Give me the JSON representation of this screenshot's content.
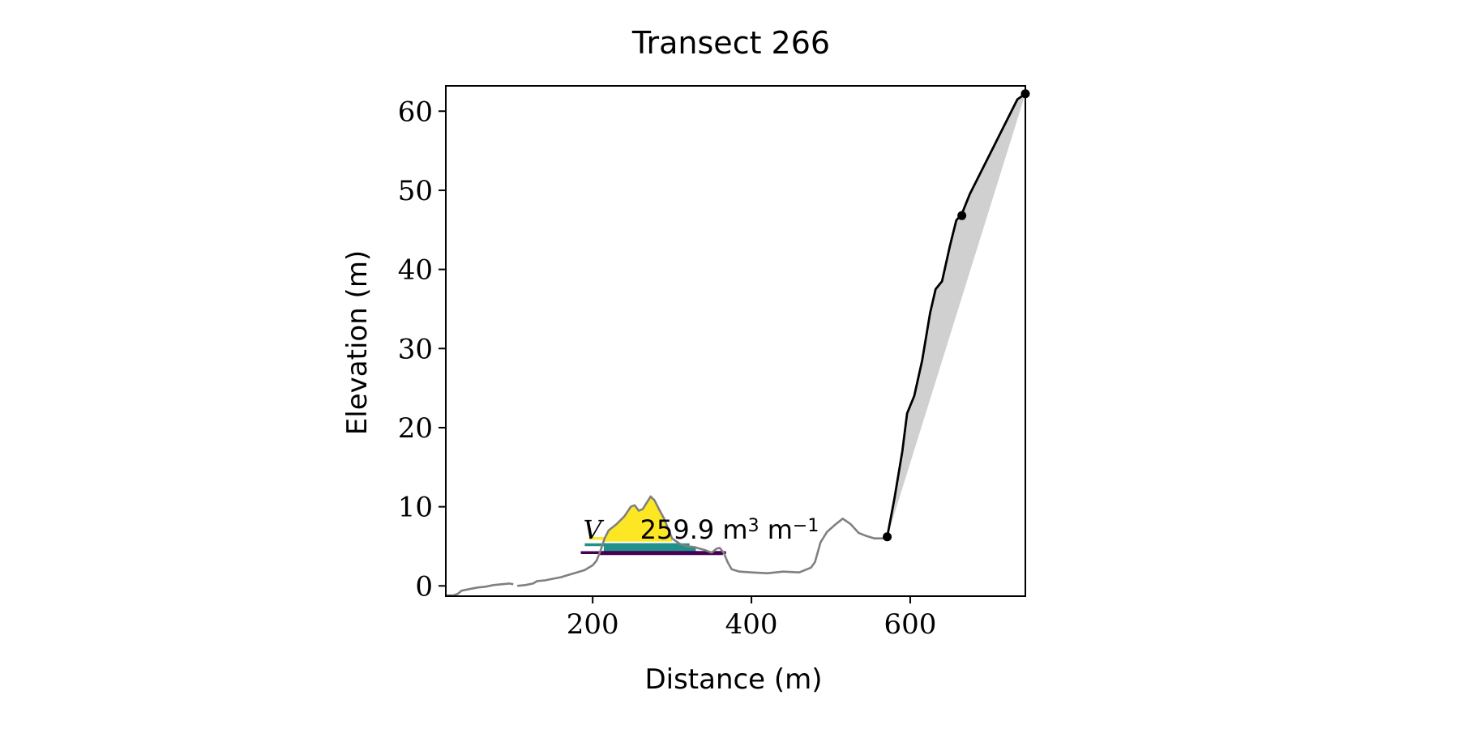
{
  "chart_data": {
    "type": "line",
    "title": "Transect 266",
    "xlabel": "Distance (m)",
    "ylabel": "Elevation (m)",
    "xlim": [
      15,
      745
    ],
    "ylim": [
      -1.3,
      63.2
    ],
    "grid": false,
    "xticks": [
      200,
      400,
      600
    ],
    "yticks": [
      0,
      10,
      20,
      30,
      40,
      50,
      60
    ],
    "annotation": {
      "prefix": "V",
      "value_text": "259.9 m",
      "sup1": "3",
      "unit2": " m",
      "sup2": "−1",
      "x": 188,
      "y": 7.2
    },
    "profile": {
      "name": "",
      "color": "#808080",
      "segments": [
        [
          [
            15,
            -1.2
          ],
          [
            25,
            -1.2
          ],
          [
            30,
            -1.0
          ],
          [
            35,
            -0.6
          ],
          [
            45,
            -0.4
          ],
          [
            55,
            -0.2
          ],
          [
            65,
            -0.1
          ],
          [
            75,
            0.1
          ],
          [
            85,
            0.2
          ],
          [
            95,
            0.3
          ],
          [
            100,
            0.2
          ]
        ],
        [
          [
            105,
            0.0
          ],
          [
            115,
            0.1
          ],
          [
            125,
            0.3
          ],
          [
            130,
            0.6
          ],
          [
            140,
            0.7
          ],
          [
            150,
            0.9
          ],
          [
            160,
            1.1
          ],
          [
            170,
            1.4
          ],
          [
            180,
            1.7
          ],
          [
            190,
            2.0
          ],
          [
            200,
            2.6
          ],
          [
            205,
            3.2
          ],
          [
            210,
            4.5
          ],
          [
            215,
            6.0
          ],
          [
            220,
            7.0
          ],
          [
            230,
            7.8
          ],
          [
            240,
            8.8
          ],
          [
            248,
            10.0
          ],
          [
            253,
            10.2
          ],
          [
            258,
            9.5
          ],
          [
            263,
            9.7
          ],
          [
            268,
            10.5
          ],
          [
            273,
            11.3
          ],
          [
            278,
            10.8
          ],
          [
            283,
            9.8
          ],
          [
            290,
            8.5
          ],
          [
            300,
            6.0
          ],
          [
            310,
            5.3
          ],
          [
            320,
            5.0
          ],
          [
            328,
            4.9
          ],
          [
            335,
            4.7
          ],
          [
            342,
            4.5
          ],
          [
            350,
            4.2
          ],
          [
            356,
            4.7
          ],
          [
            360,
            4.8
          ],
          [
            365,
            4.2
          ],
          [
            370,
            3.0
          ],
          [
            375,
            2.1
          ],
          [
            385,
            1.8
          ],
          [
            400,
            1.7
          ],
          [
            420,
            1.6
          ],
          [
            440,
            1.8
          ],
          [
            460,
            1.7
          ],
          [
            475,
            2.3
          ],
          [
            480,
            3.0
          ],
          [
            487,
            5.5
          ],
          [
            495,
            6.8
          ],
          [
            505,
            7.7
          ],
          [
            515,
            8.5
          ],
          [
            525,
            7.8
          ],
          [
            535,
            6.7
          ],
          [
            545,
            6.3
          ],
          [
            555,
            6.0
          ],
          [
            565,
            6.0
          ],
          [
            571,
            6.2
          ]
        ]
      ]
    },
    "cliff": {
      "name": "",
      "color": "#000000",
      "points": [
        [
          571,
          6.2
        ],
        [
          580,
          11.0
        ],
        [
          590,
          17.0
        ],
        [
          596,
          21.8
        ],
        [
          605,
          24.0
        ],
        [
          615,
          28.5
        ],
        [
          625,
          34.5
        ],
        [
          632,
          37.5
        ],
        [
          640,
          38.5
        ],
        [
          650,
          43.0
        ],
        [
          658,
          46.2
        ],
        [
          665,
          47.0
        ],
        [
          675,
          49.5
        ],
        [
          690,
          52.5
        ],
        [
          705,
          55.5
        ],
        [
          720,
          58.5
        ],
        [
          735,
          61.5
        ],
        [
          745,
          62.2
        ]
      ],
      "markers": [
        [
          571,
          6.2
        ],
        [
          665,
          46.8
        ],
        [
          745,
          62.2
        ]
      ],
      "fill_color": "#d0d0d0"
    },
    "dune_fill": {
      "color": "#fde725",
      "x_range": [
        213,
        300
      ]
    },
    "levels": [
      {
        "y": 6.0,
        "x0": 195,
        "x1": 215,
        "color": "#fde725"
      },
      {
        "y": 5.2,
        "x0": 190,
        "x1": 322,
        "color": "#21918c"
      },
      {
        "y": 4.2,
        "x0": 185,
        "x1": 368,
        "color": "#440154"
      }
    ],
    "band_fills": [
      {
        "color": "#21918c",
        "y0": 4.2,
        "y1": 5.4,
        "x_range": [
          214,
          330
        ]
      },
      {
        "color": "#440154",
        "y0": 3.9,
        "y1": 4.4,
        "x_range": [
          206,
          364
        ]
      }
    ]
  }
}
